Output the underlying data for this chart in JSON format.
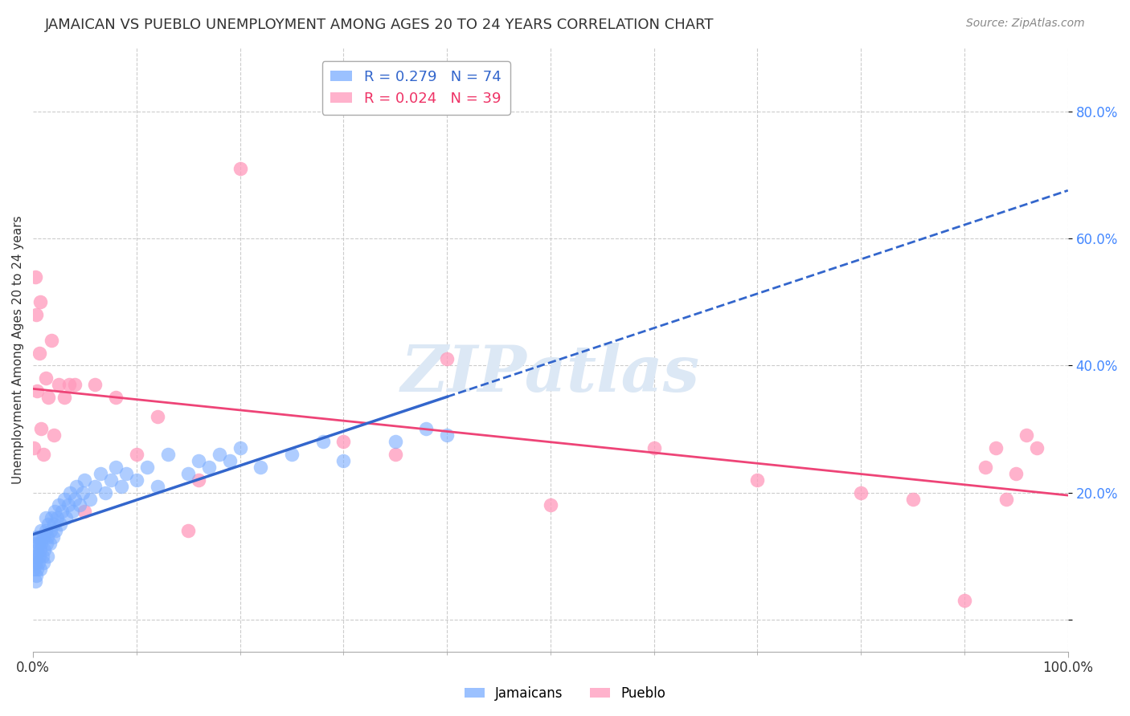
{
  "title": "JAMAICAN VS PUEBLO UNEMPLOYMENT AMONG AGES 20 TO 24 YEARS CORRELATION CHART",
  "source": "Source: ZipAtlas.com",
  "ylabel": "Unemployment Among Ages 20 to 24 years",
  "jamaicans_color": "#7aadff",
  "pueblo_color": "#ff99bb",
  "trendline_jamaicans_color": "#3366cc",
  "trendline_pueblo_color": "#ee4477",
  "watermark": "ZIPatlas",
  "watermark_color": "#dce8f5",
  "xlim": [
    0.0,
    1.0
  ],
  "ylim": [
    -0.05,
    0.9
  ],
  "ytick_values": [
    0.0,
    0.2,
    0.4,
    0.6,
    0.8
  ],
  "ytick_labels": [
    "",
    "20.0%",
    "40.0%",
    "60.0%",
    "80.0%"
  ],
  "jamaicans_R": 0.279,
  "jamaicans_N": 74,
  "pueblo_R": 0.024,
  "pueblo_N": 39,
  "jamaicans_x": [
    0.001,
    0.001,
    0.002,
    0.002,
    0.002,
    0.003,
    0.003,
    0.003,
    0.004,
    0.004,
    0.005,
    0.005,
    0.006,
    0.006,
    0.007,
    0.007,
    0.008,
    0.008,
    0.009,
    0.01,
    0.01,
    0.011,
    0.012,
    0.012,
    0.013,
    0.014,
    0.014,
    0.015,
    0.016,
    0.017,
    0.018,
    0.019,
    0.02,
    0.021,
    0.022,
    0.023,
    0.025,
    0.026,
    0.028,
    0.03,
    0.032,
    0.034,
    0.036,
    0.038,
    0.04,
    0.042,
    0.045,
    0.048,
    0.05,
    0.055,
    0.06,
    0.065,
    0.07,
    0.075,
    0.08,
    0.085,
    0.09,
    0.1,
    0.11,
    0.12,
    0.13,
    0.15,
    0.16,
    0.17,
    0.18,
    0.19,
    0.2,
    0.22,
    0.25,
    0.28,
    0.3,
    0.35,
    0.38,
    0.4
  ],
  "jamaicans_y": [
    0.08,
    0.1,
    0.06,
    0.09,
    0.12,
    0.07,
    0.1,
    0.13,
    0.08,
    0.11,
    0.09,
    0.12,
    0.1,
    0.13,
    0.08,
    0.11,
    0.12,
    0.14,
    0.1,
    0.09,
    0.13,
    0.11,
    0.14,
    0.16,
    0.12,
    0.1,
    0.13,
    0.15,
    0.12,
    0.14,
    0.16,
    0.13,
    0.15,
    0.17,
    0.14,
    0.16,
    0.18,
    0.15,
    0.17,
    0.19,
    0.16,
    0.18,
    0.2,
    0.17,
    0.19,
    0.21,
    0.18,
    0.2,
    0.22,
    0.19,
    0.21,
    0.23,
    0.2,
    0.22,
    0.24,
    0.21,
    0.23,
    0.22,
    0.24,
    0.21,
    0.26,
    0.23,
    0.25,
    0.24,
    0.26,
    0.25,
    0.27,
    0.24,
    0.26,
    0.28,
    0.25,
    0.28,
    0.3,
    0.29
  ],
  "pueblo_x": [
    0.001,
    0.002,
    0.003,
    0.004,
    0.006,
    0.007,
    0.008,
    0.01,
    0.012,
    0.015,
    0.018,
    0.02,
    0.025,
    0.03,
    0.035,
    0.04,
    0.05,
    0.06,
    0.08,
    0.1,
    0.12,
    0.15,
    0.16,
    0.2,
    0.3,
    0.35,
    0.4,
    0.5,
    0.6,
    0.7,
    0.8,
    0.85,
    0.9,
    0.92,
    0.93,
    0.94,
    0.95,
    0.96,
    0.97
  ],
  "pueblo_y": [
    0.27,
    0.54,
    0.48,
    0.36,
    0.42,
    0.5,
    0.3,
    0.26,
    0.38,
    0.35,
    0.44,
    0.29,
    0.37,
    0.35,
    0.37,
    0.37,
    0.17,
    0.37,
    0.35,
    0.26,
    0.32,
    0.14,
    0.22,
    0.71,
    0.28,
    0.26,
    0.41,
    0.18,
    0.27,
    0.22,
    0.2,
    0.19,
    0.03,
    0.24,
    0.27,
    0.19,
    0.23,
    0.29,
    0.27
  ]
}
